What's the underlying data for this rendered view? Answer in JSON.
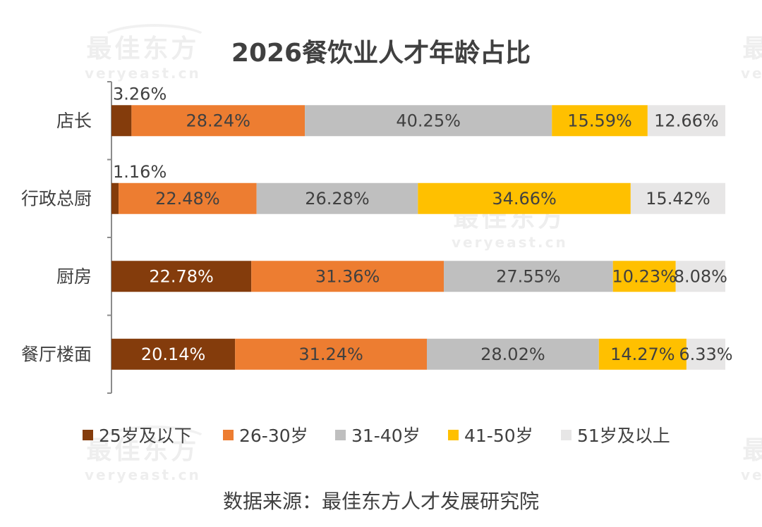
{
  "watermark": {
    "text": "最佳东方",
    "subtext": "veryeast.cn"
  },
  "chart_data": {
    "type": "bar",
    "orientation": "horizontal",
    "stacked": true,
    "title": "2026餐饮业人才年龄占比",
    "categories": [
      "店长",
      "行政总厨",
      "厨房",
      "餐厅楼面"
    ],
    "series": [
      {
        "name": "25岁及以下",
        "color": "#843C0C",
        "values": [
          3.26,
          1.16,
          22.78,
          20.14
        ],
        "labels": [
          "3.26%",
          "1.16%",
          "22.78%",
          "20.14%"
        ]
      },
      {
        "name": "26-30岁",
        "color": "#ED7D31",
        "values": [
          28.24,
          22.48,
          31.36,
          31.24
        ],
        "labels": [
          "28.24%",
          "22.48%",
          "31.36%",
          "31.24%"
        ]
      },
      {
        "name": "31-40岁",
        "color": "#BFBFBF",
        "values": [
          40.25,
          26.28,
          27.55,
          28.02
        ],
        "labels": [
          "40.25%",
          "26.28%",
          "27.55%",
          "28.02%"
        ]
      },
      {
        "name": "41-50岁",
        "color": "#FFC000",
        "values": [
          15.59,
          34.66,
          10.23,
          14.27
        ],
        "labels": [
          "15.59%",
          "34.66%",
          "10.23%",
          "14.27%"
        ]
      },
      {
        "name": "51岁及以上",
        "color": "#E7E6E6",
        "values": [
          12.66,
          15.42,
          8.08,
          6.33
        ],
        "labels": [
          "12.66%",
          "15.42%",
          "8.08%",
          "6.33%"
        ]
      }
    ],
    "xlim": [
      0,
      100
    ],
    "legend_position": "bottom",
    "grid": false
  },
  "source_note": "数据来源：最佳东方人才发展研究院"
}
